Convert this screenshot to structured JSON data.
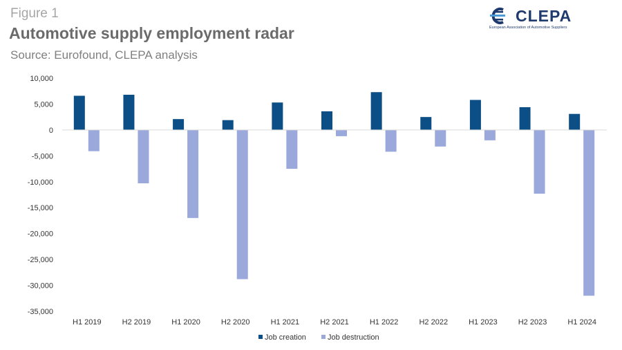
{
  "figure_label": "Figure 1",
  "title": "Automotive supply employment radar",
  "subtitle": "Source: Eurofound, CLEPA analysis",
  "logo": {
    "name": "CLEPA",
    "tagline": "European Association of Automotive Suppliers"
  },
  "chart_data": {
    "type": "bar",
    "categories": [
      "H1 2019",
      "H2 2019",
      "H1 2020",
      "H2 2020",
      "H1 2021",
      "H2 2021",
      "H1 2022",
      "H2 2022",
      "H1 2023",
      "H2 2023",
      "H1 2024"
    ],
    "series": [
      {
        "name": "Job creation",
        "color": "#0b4f86",
        "values": [
          6600,
          6800,
          2100,
          1900,
          5300,
          3600,
          7300,
          2500,
          5800,
          4400,
          3100
        ]
      },
      {
        "name": "Job destruction",
        "color": "#9aa8dc",
        "values": [
          -4100,
          -10300,
          -17000,
          -28800,
          -7500,
          -1200,
          -4200,
          -3200,
          -2000,
          -12300,
          -32000
        ]
      }
    ],
    "ylim": [
      -35000,
      10000
    ],
    "yticks": [
      10000,
      5000,
      0,
      -5000,
      -10000,
      -15000,
      -20000,
      -25000,
      -30000,
      -35000
    ],
    "ytick_labels": [
      "10,000",
      "5,000",
      "0",
      "-5,000",
      "-10,000",
      "-15,000",
      "-20,000",
      "-25,000",
      "-30,000",
      "-35,000"
    ],
    "grid": false,
    "legend": "bottom-center"
  }
}
